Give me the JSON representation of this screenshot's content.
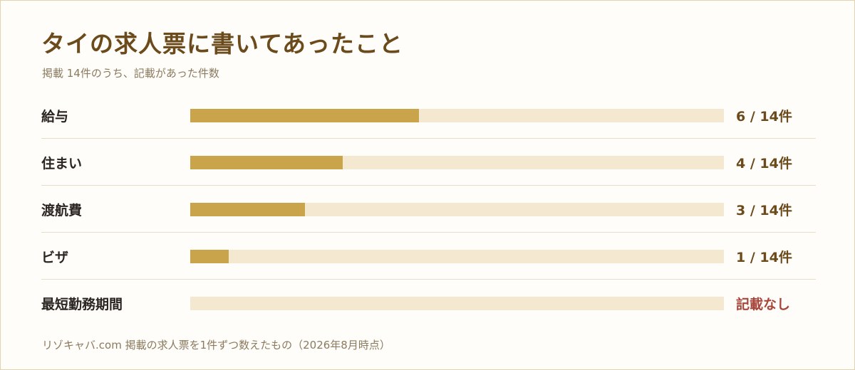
{
  "title": "タイの求人票に書いてあったこと",
  "subtitle": "掲載 14件のうち、記載があった件数",
  "footer": "リゾキャバ.com 掲載の求人票を1件ずつ数えたもの（2026年8月時点）",
  "colors": {
    "fill": "#c9a44a",
    "track": "#f4e8d0",
    "title": "#6b4a1b",
    "value": "#6b4a1b",
    "none_value": "#a8453a"
  },
  "chart_data": {
    "type": "bar",
    "orientation": "horizontal",
    "total": 14,
    "categories": [
      "給与",
      "住まい",
      "渡航費",
      "ビザ",
      "最短勤務期間"
    ],
    "values": [
      6,
      4,
      3,
      1,
      0
    ],
    "value_labels": [
      "6 / 14件",
      "4 / 14件",
      "3 / 14件",
      "1 / 14件",
      "記載なし"
    ],
    "xlim": [
      0,
      14
    ],
    "grid": false,
    "legend": "none"
  }
}
